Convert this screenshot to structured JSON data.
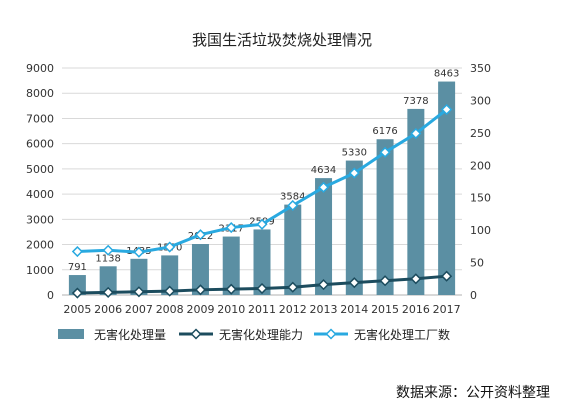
{
  "chart_data": {
    "type": "bar",
    "title": "我国生活垃圾焚烧处理情况",
    "categories": [
      "2005",
      "2006",
      "2007",
      "2008",
      "2009",
      "2010",
      "2011",
      "2012",
      "2013",
      "2014",
      "2015",
      "2016",
      "2017"
    ],
    "series": [
      {
        "name": "无害化处理量",
        "type": "bar",
        "axis": "left",
        "values": [
          791,
          1138,
          1435,
          1570,
          2022,
          2317,
          2599,
          3584,
          4634,
          5330,
          6176,
          7378,
          8463
        ],
        "color": "#5b8fa3"
      },
      {
        "name": "无害化处理能力",
        "type": "line",
        "axis": "right",
        "values": [
          3,
          4,
          5,
          6,
          8,
          9,
          10,
          12,
          16,
          19,
          22,
          25,
          29
        ],
        "color": "#1c4c5e"
      },
      {
        "name": "无害化处理工厂数",
        "type": "line",
        "axis": "right",
        "values": [
          67,
          69,
          66,
          74,
          93,
          104,
          109,
          138,
          166,
          188,
          220,
          249,
          286
        ],
        "color": "#29a9e0"
      }
    ],
    "y_left": {
      "min": 0,
      "max": 9000,
      "ticks": [
        0,
        1000,
        2000,
        3000,
        4000,
        5000,
        6000,
        7000,
        8000,
        9000
      ]
    },
    "y_right": {
      "min": 0,
      "max": 350,
      "ticks": [
        0,
        50,
        100,
        150,
        200,
        250,
        300,
        350
      ]
    },
    "bar_data_labels": true,
    "grid": true,
    "legend_position": "bottom"
  },
  "source_text": "数据来源：公开资料整理"
}
